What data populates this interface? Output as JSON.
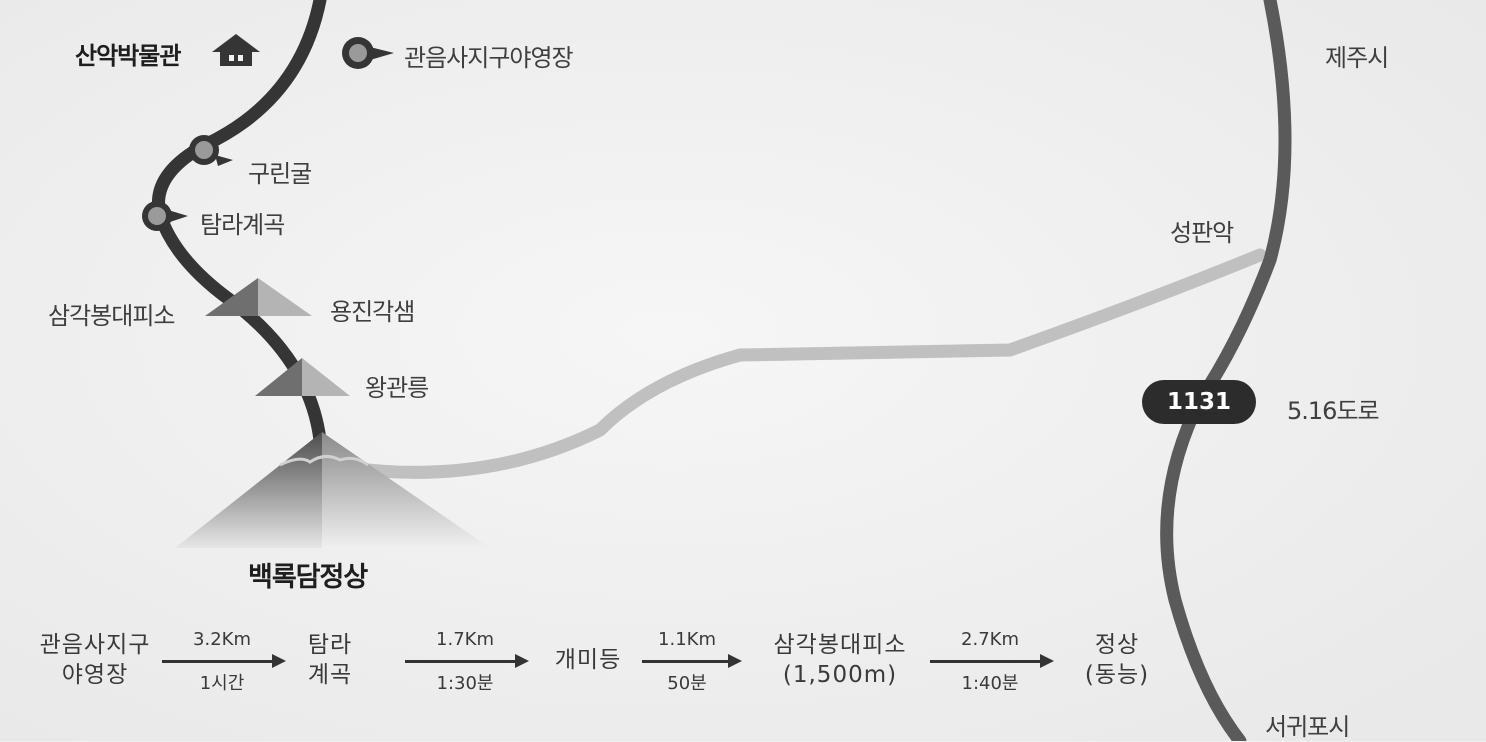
{
  "map": {
    "labels": {
      "museum": "산악박물관",
      "campsite": "관음사지구야영장",
      "gurin_cave": "구린굴",
      "tamra_valley": "탐라계곡",
      "samgak_shelter": "삼각봉대피소",
      "yongjin_saem": "용진각샘",
      "wanggwan": "왕관릉",
      "summit": "백록담정상",
      "jeju_city": "제주시",
      "seongpanak": "성판악",
      "road_name": "5.16도로",
      "seogwipo": "서귀포시"
    },
    "road_number": "1131",
    "icons": {
      "museum": "house-icon",
      "campsite": "location-pin-icon"
    },
    "colors": {
      "background": "#f1f1f1",
      "trail": "#3a3a3a",
      "road": "#555555",
      "other_trail": "#bdbdbd",
      "mountain": "#666666"
    }
  },
  "route": {
    "steps": [
      {
        "line1": "관음사지구",
        "line2": "야영장"
      },
      {
        "line1": "탐라",
        "line2": "계곡"
      },
      {
        "line1": "개미등",
        "line2": ""
      },
      {
        "line1": "삼각봉대피소",
        "line2": "(1,500m)"
      },
      {
        "line1": "정상",
        "line2": "(동능)"
      }
    ],
    "segments": [
      {
        "distance": "3.2Km",
        "time": "1시간"
      },
      {
        "distance": "1.7Km",
        "time": "1:30분"
      },
      {
        "distance": "1.1Km",
        "time": "50분"
      },
      {
        "distance": "2.7Km",
        "time": "1:40분"
      }
    ]
  }
}
